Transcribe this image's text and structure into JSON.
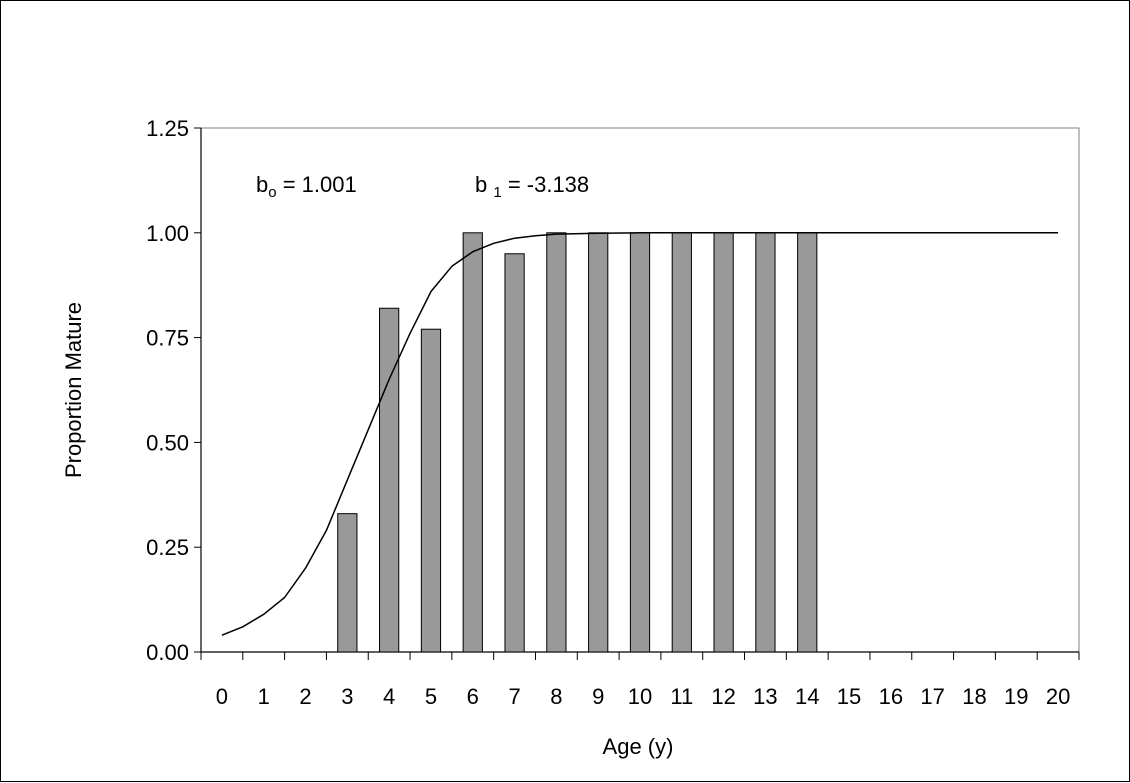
{
  "chart_data": {
    "type": "bar",
    "title": "",
    "xlabel": "Age (y)",
    "ylabel": "Proportion Mature",
    "categories": [
      "0",
      "1",
      "2",
      "3",
      "4",
      "5",
      "6",
      "7",
      "8",
      "9",
      "10",
      "11",
      "12",
      "13",
      "14",
      "15",
      "16",
      "17",
      "18",
      "19",
      "20"
    ],
    "ylim": [
      0,
      1.25
    ],
    "yticks": [
      "0.00",
      "0.25",
      "0.50",
      "0.75",
      "1.00",
      "1.25"
    ],
    "series": [
      {
        "type": "bar",
        "values": [
          null,
          null,
          null,
          0.33,
          0.82,
          0.77,
          1.0,
          0.95,
          1.0,
          1.0,
          1.0,
          1.0,
          1.0,
          1.0,
          1.0,
          null,
          null,
          null,
          null,
          null,
          null
        ]
      },
      {
        "type": "line",
        "x": [
          0,
          0.5,
          1,
          1.5,
          2,
          2.5,
          3,
          3.5,
          4,
          4.5,
          5,
          5.5,
          6,
          6.5,
          7,
          7.5,
          8,
          9,
          10,
          12,
          14,
          16,
          18,
          20
        ],
        "values": [
          0.04,
          0.06,
          0.09,
          0.13,
          0.2,
          0.29,
          0.41,
          0.53,
          0.65,
          0.76,
          0.86,
          0.92,
          0.955,
          0.975,
          0.987,
          0.993,
          0.997,
          0.999,
          1.0,
          1.0,
          1.0,
          1.0,
          1.0,
          1.0
        ]
      }
    ],
    "annotations": {
      "b0_base": "b",
      "b0_sub": "o",
      "b0_rest": " = 1.001",
      "b1_base": "b ",
      "b1_sub": "1",
      "b1_rest": " = -3.138"
    },
    "colors": {
      "bar_fill": "#999999",
      "bar_stroke": "#000000",
      "line": "#000000"
    },
    "grid": false
  }
}
